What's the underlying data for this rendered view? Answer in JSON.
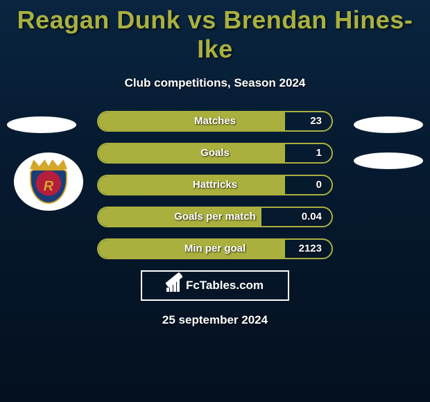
{
  "title": "Reagan Dunk vs Brendan Hines-Ike",
  "subtitle": "Club competitions, Season 2024",
  "date": "25 september 2024",
  "brand": "FcTables.com",
  "colors": {
    "accent": "#aab03e",
    "bg_top": "#0a2540",
    "bg_bottom": "#04101f",
    "text": "#ffffff"
  },
  "stats": [
    {
      "label": "Matches",
      "value": "23",
      "fill_pct": 80
    },
    {
      "label": "Goals",
      "value": "1",
      "fill_pct": 80
    },
    {
      "label": "Hattricks",
      "value": "0",
      "fill_pct": 80
    },
    {
      "label": "Goals per match",
      "value": "0.04",
      "fill_pct": 70
    },
    {
      "label": "Min per goal",
      "value": "2123",
      "fill_pct": 80
    }
  ]
}
